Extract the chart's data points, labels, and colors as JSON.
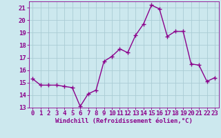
{
  "x": [
    0,
    1,
    2,
    3,
    4,
    5,
    6,
    7,
    8,
    9,
    10,
    11,
    12,
    13,
    14,
    15,
    16,
    17,
    18,
    19,
    20,
    21,
    22,
    23
  ],
  "y": [
    15.3,
    14.8,
    14.8,
    14.8,
    14.7,
    14.6,
    13.1,
    14.1,
    14.4,
    16.7,
    17.1,
    17.7,
    17.4,
    18.8,
    19.7,
    21.2,
    20.9,
    18.7,
    19.1,
    19.1,
    16.5,
    16.4,
    15.1,
    15.4
  ],
  "color": "#8B008B",
  "bg_color": "#cce8ee",
  "grid_color": "#aaccd4",
  "xlabel": "Windchill (Refroidissement éolien,°C)",
  "xlim": [
    -0.5,
    23.5
  ],
  "ylim": [
    13,
    21.5
  ],
  "yticks": [
    13,
    14,
    15,
    16,
    17,
    18,
    19,
    20,
    21
  ],
  "xticks": [
    0,
    1,
    2,
    3,
    4,
    5,
    6,
    7,
    8,
    9,
    10,
    11,
    12,
    13,
    14,
    15,
    16,
    17,
    18,
    19,
    20,
    21,
    22,
    23
  ],
  "xlabel_fontsize": 6.5,
  "tick_fontsize": 6.5,
  "linewidth": 1.0,
  "markersize": 2.5
}
